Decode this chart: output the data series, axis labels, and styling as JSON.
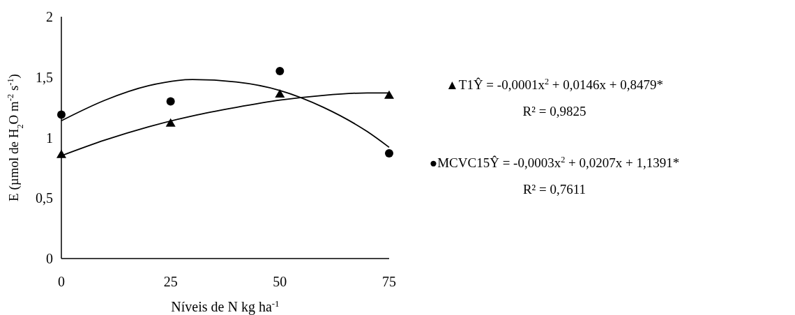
{
  "chart_data": {
    "type": "scatter",
    "xlabel": "Níveis de N kg ha$^{-1}$",
    "ylabel": "E (µmol de H$_{2}$O m$^{-2}$ s$^{-1}$)",
    "xlim": [
      0,
      75
    ],
    "xticks": [
      0,
      25,
      50,
      75
    ],
    "ylim": [
      0,
      2
    ],
    "yticks": [
      0,
      {
        "value": 0.5,
        "label": "0,5"
      },
      1,
      {
        "value": 1.5,
        "label": "1,5"
      },
      2
    ],
    "grid": false,
    "series": [
      {
        "marker": "triangle",
        "color": "#000000",
        "x": [
          0,
          25,
          50,
          75
        ],
        "values": [
          0.86,
          1.12,
          1.36,
          1.35
        ]
      },
      {
        "marker": "circle",
        "color": "#000000",
        "x": [
          0,
          25,
          50,
          75
        ],
        "values": [
          1.19,
          1.3,
          1.55,
          0.87
        ]
      },
      {
        "type": "line",
        "marker": "none",
        "line_style": "solid",
        "color": "#000000",
        "x": [
          0,
          10,
          20,
          30,
          40,
          50,
          60,
          70,
          75
        ],
        "values": [
          0.85,
          0.98,
          1.09,
          1.18,
          1.25,
          1.31,
          1.35,
          1.37,
          1.37
        ]
      },
      {
        "type": "line",
        "marker": "none",
        "line_style": "solid",
        "color": "#000000",
        "x": [
          0,
          10,
          20,
          30,
          40,
          50,
          60,
          70,
          75
        ],
        "values": [
          1.14,
          1.31,
          1.43,
          1.48,
          1.46,
          1.39,
          1.25,
          1.05,
          0.92
        ]
      }
    ],
    "annotations": [
      "▲T1Ŷ = -0,0001x$^{2}$ + 0,0146x + 0,8479*",
      "R² = 0,9825",
      "●MCVC15Ŷ = -0,0003x$^{2}$ + 0,0207x + 1,1391*",
      "R² = 0,7611"
    ]
  }
}
